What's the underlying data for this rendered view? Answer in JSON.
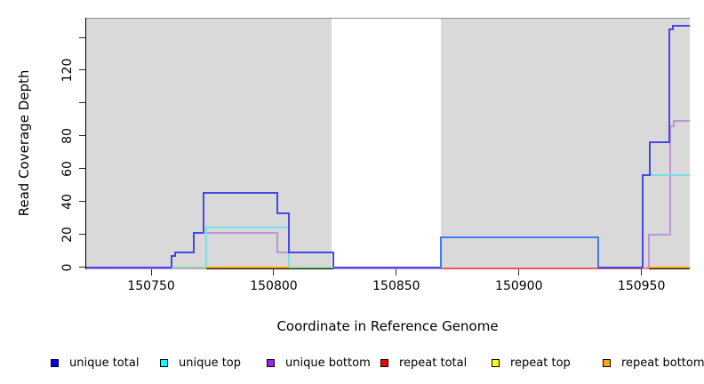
{
  "figure_title": "",
  "axes": {
    "x": {
      "label": "Coordinate in Reference Genome",
      "ticks": [
        {
          "v": 150750,
          "label": "150750"
        },
        {
          "v": 150800,
          "label": "150800"
        },
        {
          "v": 150850,
          "label": "150850"
        },
        {
          "v": 150900,
          "label": "150900"
        },
        {
          "v": 150950,
          "label": "150950"
        }
      ]
    },
    "y": {
      "label": "Read Coverage Depth",
      "ticks": [
        {
          "v": 0,
          "label": "0"
        },
        {
          "v": 20,
          "label": "20"
        },
        {
          "v": 40,
          "label": "40"
        },
        {
          "v": 60,
          "label": "60"
        },
        {
          "v": 80,
          "label": "80"
        },
        {
          "v": 100,
          "label": ""
        },
        {
          "v": 120,
          "label": "120"
        },
        {
          "v": 140,
          "label": ""
        }
      ]
    }
  },
  "chart_data": {
    "type": "line",
    "subtype": "step-coverage-plot",
    "title": "",
    "xlabel": "Coordinate in Reference Genome",
    "ylabel": "Read Coverage Depth",
    "xlim": [
      150723.5,
      150969.7
    ],
    "ylim": [
      0,
      152
    ],
    "grid": false,
    "legend_position": "bottom",
    "background_regions": [
      {
        "name": "shaded-left-block",
        "x": [
          150723.5,
          150823.5
        ],
        "color": "#d9d9d9",
        "top_border": "#8e8e8e"
      },
      {
        "name": "white-gap",
        "x": [
          150823.5,
          150868.2
        ],
        "color": "#ffffff",
        "top_border": "#8a8a8a"
      },
      {
        "name": "shaded-right-block",
        "x": [
          150868.2,
          150969.7
        ],
        "color": "#d9d9d9",
        "top_border": "#8e8e8e"
      }
    ],
    "series": [
      {
        "name": "unique bottom",
        "legend_color": "#a020f0",
        "draw_color": "#c193dd",
        "baseline_fringe": true,
        "steps": [
          [
            150723.5,
            150772.5,
            0
          ],
          [
            150772.5,
            150801.4,
            21
          ],
          [
            150801.4,
            150824.3,
            9
          ],
          [
            150824.3,
            150953.0,
            0
          ],
          [
            150953.0,
            150961.8,
            20
          ],
          [
            150961.8,
            150963.3,
            86
          ],
          [
            150963.3,
            150969.7,
            89
          ]
        ]
      },
      {
        "name": "unique top",
        "legend_color": "#00ffff",
        "draw_color": "#76e0e8",
        "baseline_fringe": false,
        "steps": [
          [
            150723.5,
            150772.5,
            0
          ],
          [
            150772.5,
            150806.2,
            24
          ],
          [
            150806.2,
            150868.2,
            0
          ],
          [
            150868.2,
            150932.4,
            18
          ],
          [
            150932.4,
            150950.6,
            0
          ],
          [
            150950.6,
            150969.7,
            56
          ]
        ]
      },
      {
        "name": "repeat total",
        "legend_color": "#ff0000",
        "draw_color": "#e25a5a",
        "baseline_fringe": true,
        "steps": [
          [
            150868.2,
            150950.6,
            0
          ]
        ]
      },
      {
        "name": "unique total",
        "legend_color": "#0000ff",
        "draw_color": "#4747e3",
        "baseline_fringe": false,
        "steps": [
          [
            150723.5,
            150758.2,
            0
          ],
          [
            150758.2,
            150759.7,
            7
          ],
          [
            150759.7,
            150767.5,
            9
          ],
          [
            150767.5,
            150771.2,
            21
          ],
          [
            150771.2,
            150801.4,
            45
          ],
          [
            150801.4,
            150806.2,
            33
          ],
          [
            150806.2,
            150824.3,
            9
          ],
          [
            150824.3,
            150868.2,
            0
          ],
          [
            150868.2,
            150932.4,
            18,
            "#3f7df2"
          ],
          [
            150932.4,
            150950.6,
            0
          ],
          [
            150950.6,
            150953.4,
            56
          ],
          [
            150953.4,
            150961.5,
            76
          ],
          [
            150961.5,
            150962.9,
            145
          ],
          [
            150962.9,
            150969.7,
            147
          ]
        ]
      },
      {
        "name": "repeat top",
        "legend_color": "#ffff00",
        "draw_color": "#8fd7a2",
        "baseline_fringe": false,
        "note": "renders pale green where it overlaps the unique-top baseline",
        "steps": [
          [
            150759.7,
            150772.5,
            0
          ],
          [
            150806.2,
            150824.3,
            0
          ]
        ]
      },
      {
        "name": "repeat bottom",
        "legend_color": "#ffa500",
        "draw_color": "#ff9e00",
        "baseline_fringe": false,
        "steps": [
          [
            150772.5,
            150806.2,
            0
          ],
          [
            150952.0,
            150969.7,
            0
          ]
        ]
      }
    ]
  },
  "legend": {
    "items": [
      {
        "label": "unique total",
        "color": "#0000ff"
      },
      {
        "label": "unique top",
        "color": "#00ffff"
      },
      {
        "label": "unique bottom",
        "color": "#a020f0"
      },
      {
        "label": "repeat total",
        "color": "#ff0000"
      },
      {
        "label": "repeat top",
        "color": "#ffff00"
      },
      {
        "label": "repeat bottom",
        "color": "#ffa500"
      }
    ]
  }
}
